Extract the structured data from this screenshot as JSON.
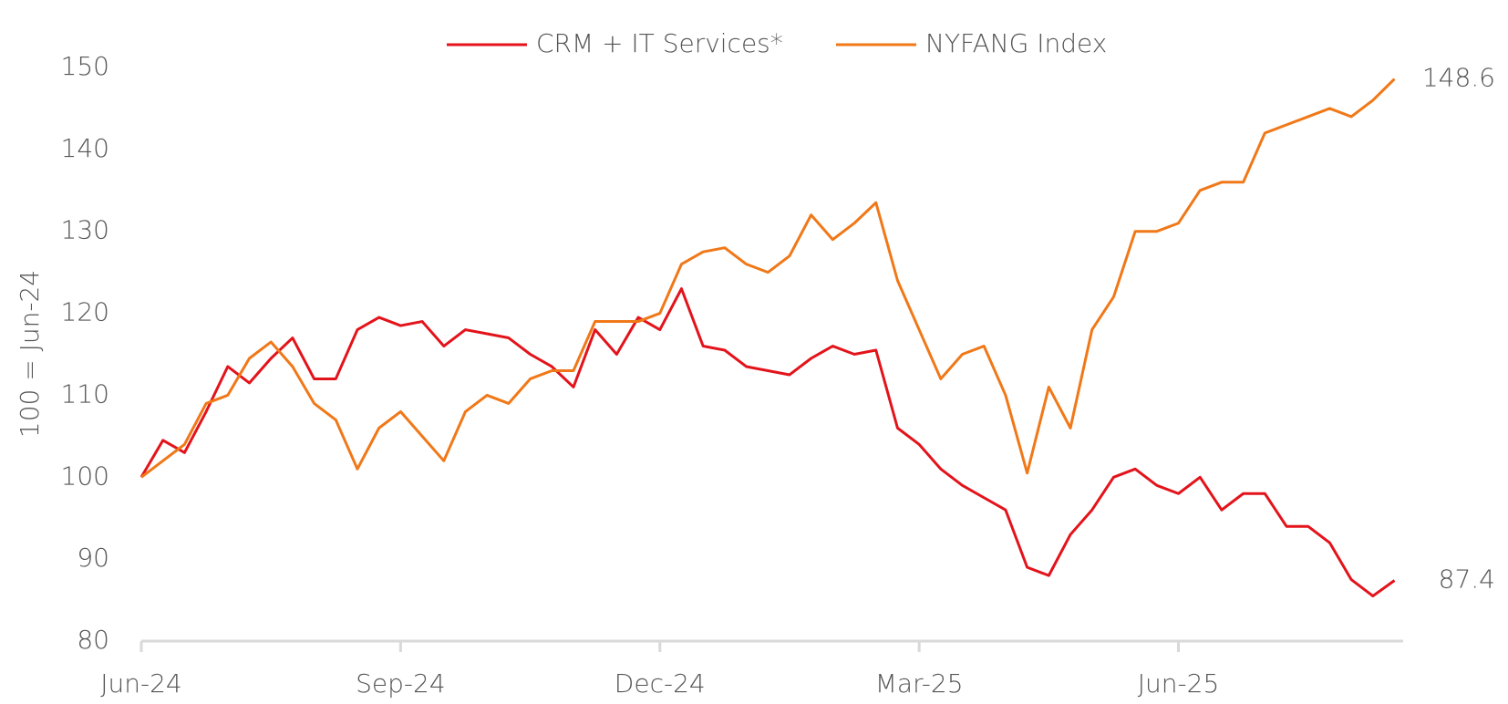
{
  "chart_data": {
    "type": "line",
    "ylabel": "100 = Jun-24",
    "x": [
      0,
      0.25,
      0.5,
      0.75,
      1,
      1.25,
      1.5,
      1.75,
      2,
      2.25,
      2.5,
      2.75,
      3,
      3.25,
      3.5,
      3.75,
      4,
      4.25,
      4.5,
      4.75,
      5,
      5.25,
      5.5,
      5.75,
      6,
      6.25,
      6.5,
      6.75,
      7,
      7.25,
      7.5,
      7.75,
      8,
      8.25,
      8.5,
      8.75,
      9,
      9.25,
      9.5,
      9.75,
      10,
      10.25,
      10.5,
      10.75,
      11,
      11.25,
      11.5,
      11.75,
      12,
      12.25,
      12.5,
      12.75,
      13,
      13.25,
      13.5,
      13.75,
      14,
      14.25,
      14.5
    ],
    "series": [
      {
        "name": "CRM + IT Services*",
        "color": "#e3131b",
        "values": [
          100,
          104.5,
          103,
          108,
          113.5,
          111.5,
          114.5,
          117,
          112,
          112,
          118,
          119.5,
          118.5,
          119,
          116,
          118,
          117.5,
          117,
          115,
          113.5,
          111,
          118,
          115,
          119.5,
          118,
          123,
          116,
          115.5,
          113.5,
          113,
          112.5,
          114.5,
          116,
          115,
          115.5,
          106,
          104,
          101,
          99,
          97.5,
          96,
          89,
          88,
          93,
          96,
          100,
          101,
          99,
          98,
          100,
          96,
          98,
          98,
          94,
          94,
          92,
          87.5,
          85.5,
          87.4
        ]
      },
      {
        "name": "NYFANG Index",
        "color": "#f07818",
        "values": [
          100,
          102,
          104,
          109,
          110,
          114.5,
          116.5,
          113.5,
          109,
          107,
          101,
          106,
          108,
          105,
          102,
          108,
          110,
          109,
          112,
          113,
          113,
          119,
          119,
          119,
          120,
          126,
          127.5,
          128,
          126,
          125,
          127,
          132,
          129,
          131,
          133.5,
          124,
          118,
          112,
          115,
          116,
          110,
          100.5,
          111,
          106,
          118,
          122,
          130,
          130,
          131,
          135,
          136,
          136,
          142,
          143,
          144,
          145,
          144,
          146,
          148.6
        ]
      }
    ],
    "xlim": [
      0,
      14.6
    ],
    "xticks": [
      {
        "value": 0,
        "label": "Jun-24"
      },
      {
        "value": 3,
        "label": "Sep-24"
      },
      {
        "value": 6,
        "label": "Dec-24"
      },
      {
        "value": 9,
        "label": "Mar-25"
      },
      {
        "value": 12,
        "label": "Jun-25"
      }
    ],
    "ylim": [
      80,
      150
    ],
    "yticks": [
      80,
      90,
      100,
      110,
      120,
      130,
      140,
      150
    ],
    "grid": false,
    "legend": "top"
  }
}
